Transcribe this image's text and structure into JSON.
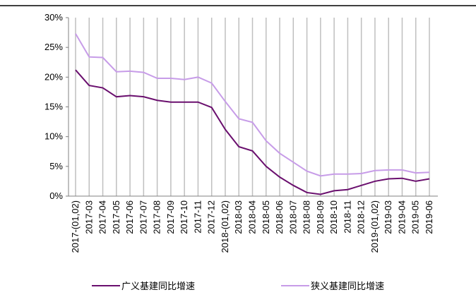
{
  "chart_data": {
    "type": "line",
    "categories": [
      "2017-(01,02)",
      "2017-03",
      "2017-04",
      "2017-05",
      "2017-06",
      "2017-07",
      "2017-08",
      "2017-09",
      "2017-10",
      "2017-11",
      "2017-12",
      "2018-(01,02)",
      "2018-03",
      "2018-04",
      "2018-05",
      "2018-06",
      "2018-07",
      "2018-08",
      "2018-09",
      "2018-10",
      "2018-11",
      "2018-12",
      "2019-(01,02)",
      "2019-03",
      "2019-04",
      "2019-05",
      "2019-06"
    ],
    "series": [
      {
        "name": "广义基建同比增速",
        "color": "#6a0f6e",
        "values": [
          21.2,
          18.6,
          18.2,
          16.7,
          16.9,
          16.7,
          16.1,
          15.8,
          15.8,
          15.8,
          14.9,
          11.2,
          8.3,
          7.6,
          5.0,
          3.2,
          1.8,
          0.6,
          0.3,
          0.9,
          1.1,
          1.8,
          2.5,
          2.9,
          3.0,
          2.5,
          2.9
        ]
      },
      {
        "name": "狭义基建同比增速",
        "color": "#c79ce8",
        "values": [
          27.3,
          23.4,
          23.3,
          20.9,
          21.0,
          20.8,
          19.8,
          19.8,
          19.6,
          20.0,
          19.0,
          15.9,
          13.0,
          12.4,
          9.3,
          7.2,
          5.7,
          4.2,
          3.4,
          3.7,
          3.7,
          3.8,
          4.3,
          4.4,
          4.4,
          3.9,
          4.0
        ]
      }
    ],
    "ylim": [
      0,
      30
    ],
    "yticks": [
      {
        "value": 0,
        "label": "0%"
      },
      {
        "value": 5,
        "label": "5%"
      },
      {
        "value": 10,
        "label": "10%"
      },
      {
        "value": 15,
        "label": "15%"
      },
      {
        "value": 20,
        "label": "20%"
      },
      {
        "value": 25,
        "label": "25%"
      },
      {
        "value": 30,
        "label": "30%"
      }
    ],
    "grid": true,
    "legend": "bottom"
  }
}
